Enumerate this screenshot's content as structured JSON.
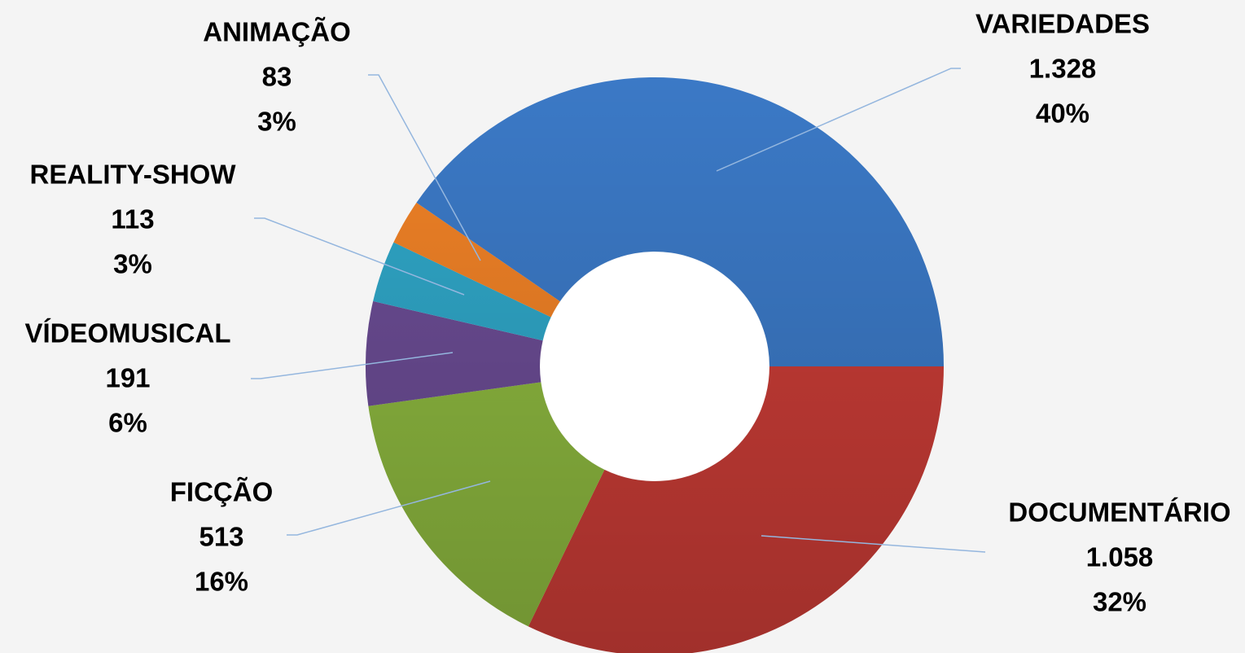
{
  "chart_data": {
    "type": "donut",
    "categories": [
      "DOCUMENTÁRIO",
      "FICÇÃO",
      "VÍDEOMUSICAL",
      "REALITY-SHOW",
      "ANIMAÇÃO",
      "VARIEDADES"
    ],
    "values": [
      1058,
      513,
      191,
      113,
      83,
      1328
    ],
    "value_labels": [
      "1.058",
      "513",
      "191",
      "113",
      "83",
      "1.328"
    ],
    "percents": [
      32,
      16,
      6,
      3,
      3,
      40
    ],
    "percent_labels": [
      "32%",
      "16%",
      "6%",
      "3%",
      "3%",
      "40%"
    ],
    "colors": [
      "#c93c36",
      "#8db83f",
      "#6b4c94",
      "#2fa6c7",
      "#ef8126",
      "#3b79c6"
    ]
  }
}
